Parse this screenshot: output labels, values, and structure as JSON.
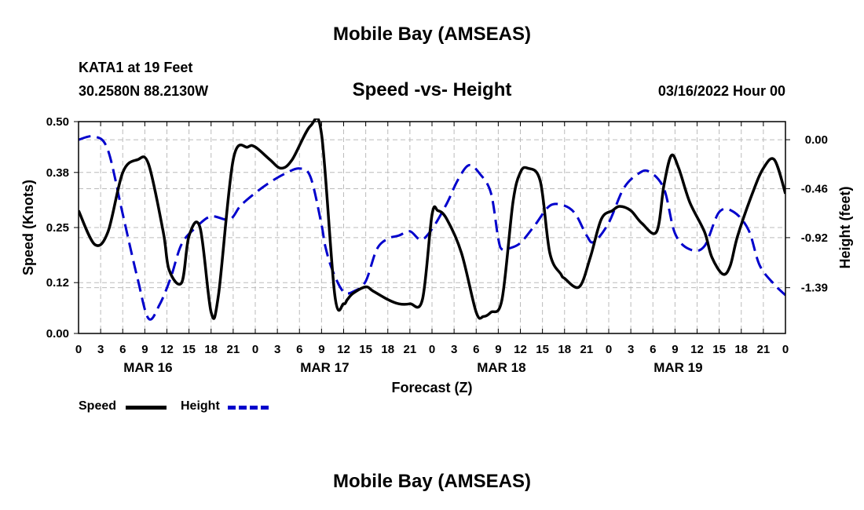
{
  "header": {
    "title": "Mobile Bay (AMSEAS)",
    "station": "KATA1 at 19 Feet",
    "coords": "30.2580N  88.2130W",
    "plot_title": "Speed -vs- Height",
    "run_time": "03/16/2022 Hour 00"
  },
  "footer": {
    "title": "Mobile Bay (AMSEAS)"
  },
  "legend": [
    {
      "label": "Speed",
      "color": "#000000",
      "dash": "solid"
    },
    {
      "label": "Height",
      "color": "#0000cc",
      "dash": "dashed"
    }
  ],
  "chart_data": {
    "type": "line",
    "xlabel": "Forecast (Z)",
    "ylabel_left": "Speed (Knots)",
    "ylabel_right": "Height (feet)",
    "x_range_hours": [
      0,
      96
    ],
    "x_tick_labels": [
      "0",
      "3",
      "6",
      "9",
      "12",
      "15",
      "18",
      "21",
      "0",
      "3",
      "6",
      "9",
      "12",
      "15",
      "18",
      "21",
      "0",
      "3",
      "6",
      "9",
      "12",
      "15",
      "18",
      "21",
      "0",
      "3",
      "6",
      "9",
      "12",
      "15",
      "18",
      "21",
      "0"
    ],
    "day_labels": [
      {
        "label": "MAR 16",
        "hour": 9
      },
      {
        "label": "MAR 17",
        "hour": 33
      },
      {
        "label": "MAR 18",
        "hour": 57
      },
      {
        "label": "MAR 19",
        "hour": 81
      }
    ],
    "y_left": {
      "min": 0.0,
      "max": 0.5,
      "ticks": [
        0.0,
        0.12,
        0.25,
        0.38,
        0.5
      ],
      "tick_labels": [
        "0.00",
        "0.12",
        "0.25",
        "0.38",
        "0.50"
      ]
    },
    "y_right": {
      "min": -1.82,
      "max": 0.17,
      "ticks": [
        0.0,
        -0.46,
        -0.92,
        -1.39
      ],
      "tick_labels": [
        "0.00",
        "-0.46",
        "-0.92",
        "-1.39"
      ]
    },
    "grid": true,
    "legend_position": "bottom-left",
    "series": [
      {
        "name": "Speed",
        "axis": "left",
        "color": "#000000",
        "x": [
          0,
          2.2,
          4,
          6,
          8,
          9.5,
          11.5,
          12.3,
          14,
          15,
          16.5,
          18,
          19,
          21,
          23,
          24,
          26,
          27.5,
          29,
          31.5,
          33,
          34.8,
          36,
          36.5,
          37.3,
          39,
          40,
          42,
          43.5,
          45,
          46.7,
          48,
          48.8,
          50,
          52,
          54,
          55,
          56,
          57.5,
          59,
          60,
          61,
          62.7,
          64,
          65.5,
          66,
          68,
          69.5,
          71,
          72.5,
          73.5,
          75,
          76.5,
          78.5,
          79.5,
          80.5,
          81.5,
          83,
          85,
          86,
          87.5,
          88.5,
          89.5,
          91.5,
          93,
          94.5,
          96
        ],
        "y": [
          0.29,
          0.21,
          0.24,
          0.38,
          0.41,
          0.4,
          0.24,
          0.15,
          0.12,
          0.23,
          0.25,
          0.05,
          0.09,
          0.41,
          0.44,
          0.44,
          0.41,
          0.39,
          0.41,
          0.49,
          0.47,
          0.09,
          0.07,
          0.08,
          0.095,
          0.11,
          0.1,
          0.08,
          0.07,
          0.07,
          0.08,
          0.28,
          0.29,
          0.27,
          0.19,
          0.05,
          0.04,
          0.05,
          0.08,
          0.31,
          0.38,
          0.39,
          0.36,
          0.19,
          0.14,
          0.13,
          0.11,
          0.18,
          0.27,
          0.29,
          0.3,
          0.29,
          0.26,
          0.24,
          0.35,
          0.42,
          0.39,
          0.31,
          0.24,
          0.18,
          0.14,
          0.16,
          0.23,
          0.33,
          0.39,
          0.41,
          0.33
        ]
      },
      {
        "name": "Height",
        "axis": "right",
        "color": "#0000cc",
        "x": [
          0,
          2.2,
          4,
          6,
          8,
          9.5,
          11,
          12.5,
          14,
          16,
          18,
          20.5,
          22,
          24,
          26,
          28,
          30,
          31.5,
          33,
          33.5,
          34.5,
          36,
          37.5,
          39,
          40.5,
          42,
          43.5,
          45,
          46.5,
          48,
          50,
          51.5,
          53,
          54.5,
          56,
          57,
          57.5,
          58.5,
          60,
          62,
          64,
          66,
          67.5,
          69,
          70,
          72,
          74,
          76,
          77.5,
          79.5,
          81,
          83,
          85,
          87,
          89,
          91,
          92.5,
          94.5,
          96
        ],
        "y": [
          0.0,
          0.03,
          -0.1,
          -0.7,
          -1.3,
          -1.68,
          -1.55,
          -1.3,
          -0.98,
          -0.82,
          -0.72,
          -0.75,
          -0.62,
          -0.5,
          -0.4,
          -0.32,
          -0.27,
          -0.35,
          -0.8,
          -1.0,
          -1.23,
          -1.43,
          -1.42,
          -1.33,
          -1.03,
          -0.93,
          -0.9,
          -0.86,
          -0.94,
          -0.84,
          -0.6,
          -0.38,
          -0.24,
          -0.32,
          -0.5,
          -0.93,
          -1.03,
          -1.02,
          -0.97,
          -0.8,
          -0.62,
          -0.62,
          -0.7,
          -0.9,
          -0.96,
          -0.78,
          -0.46,
          -0.32,
          -0.3,
          -0.46,
          -0.88,
          -1.03,
          -1.0,
          -0.68,
          -0.68,
          -0.85,
          -1.18,
          -1.36,
          -1.46
        ]
      }
    ]
  }
}
